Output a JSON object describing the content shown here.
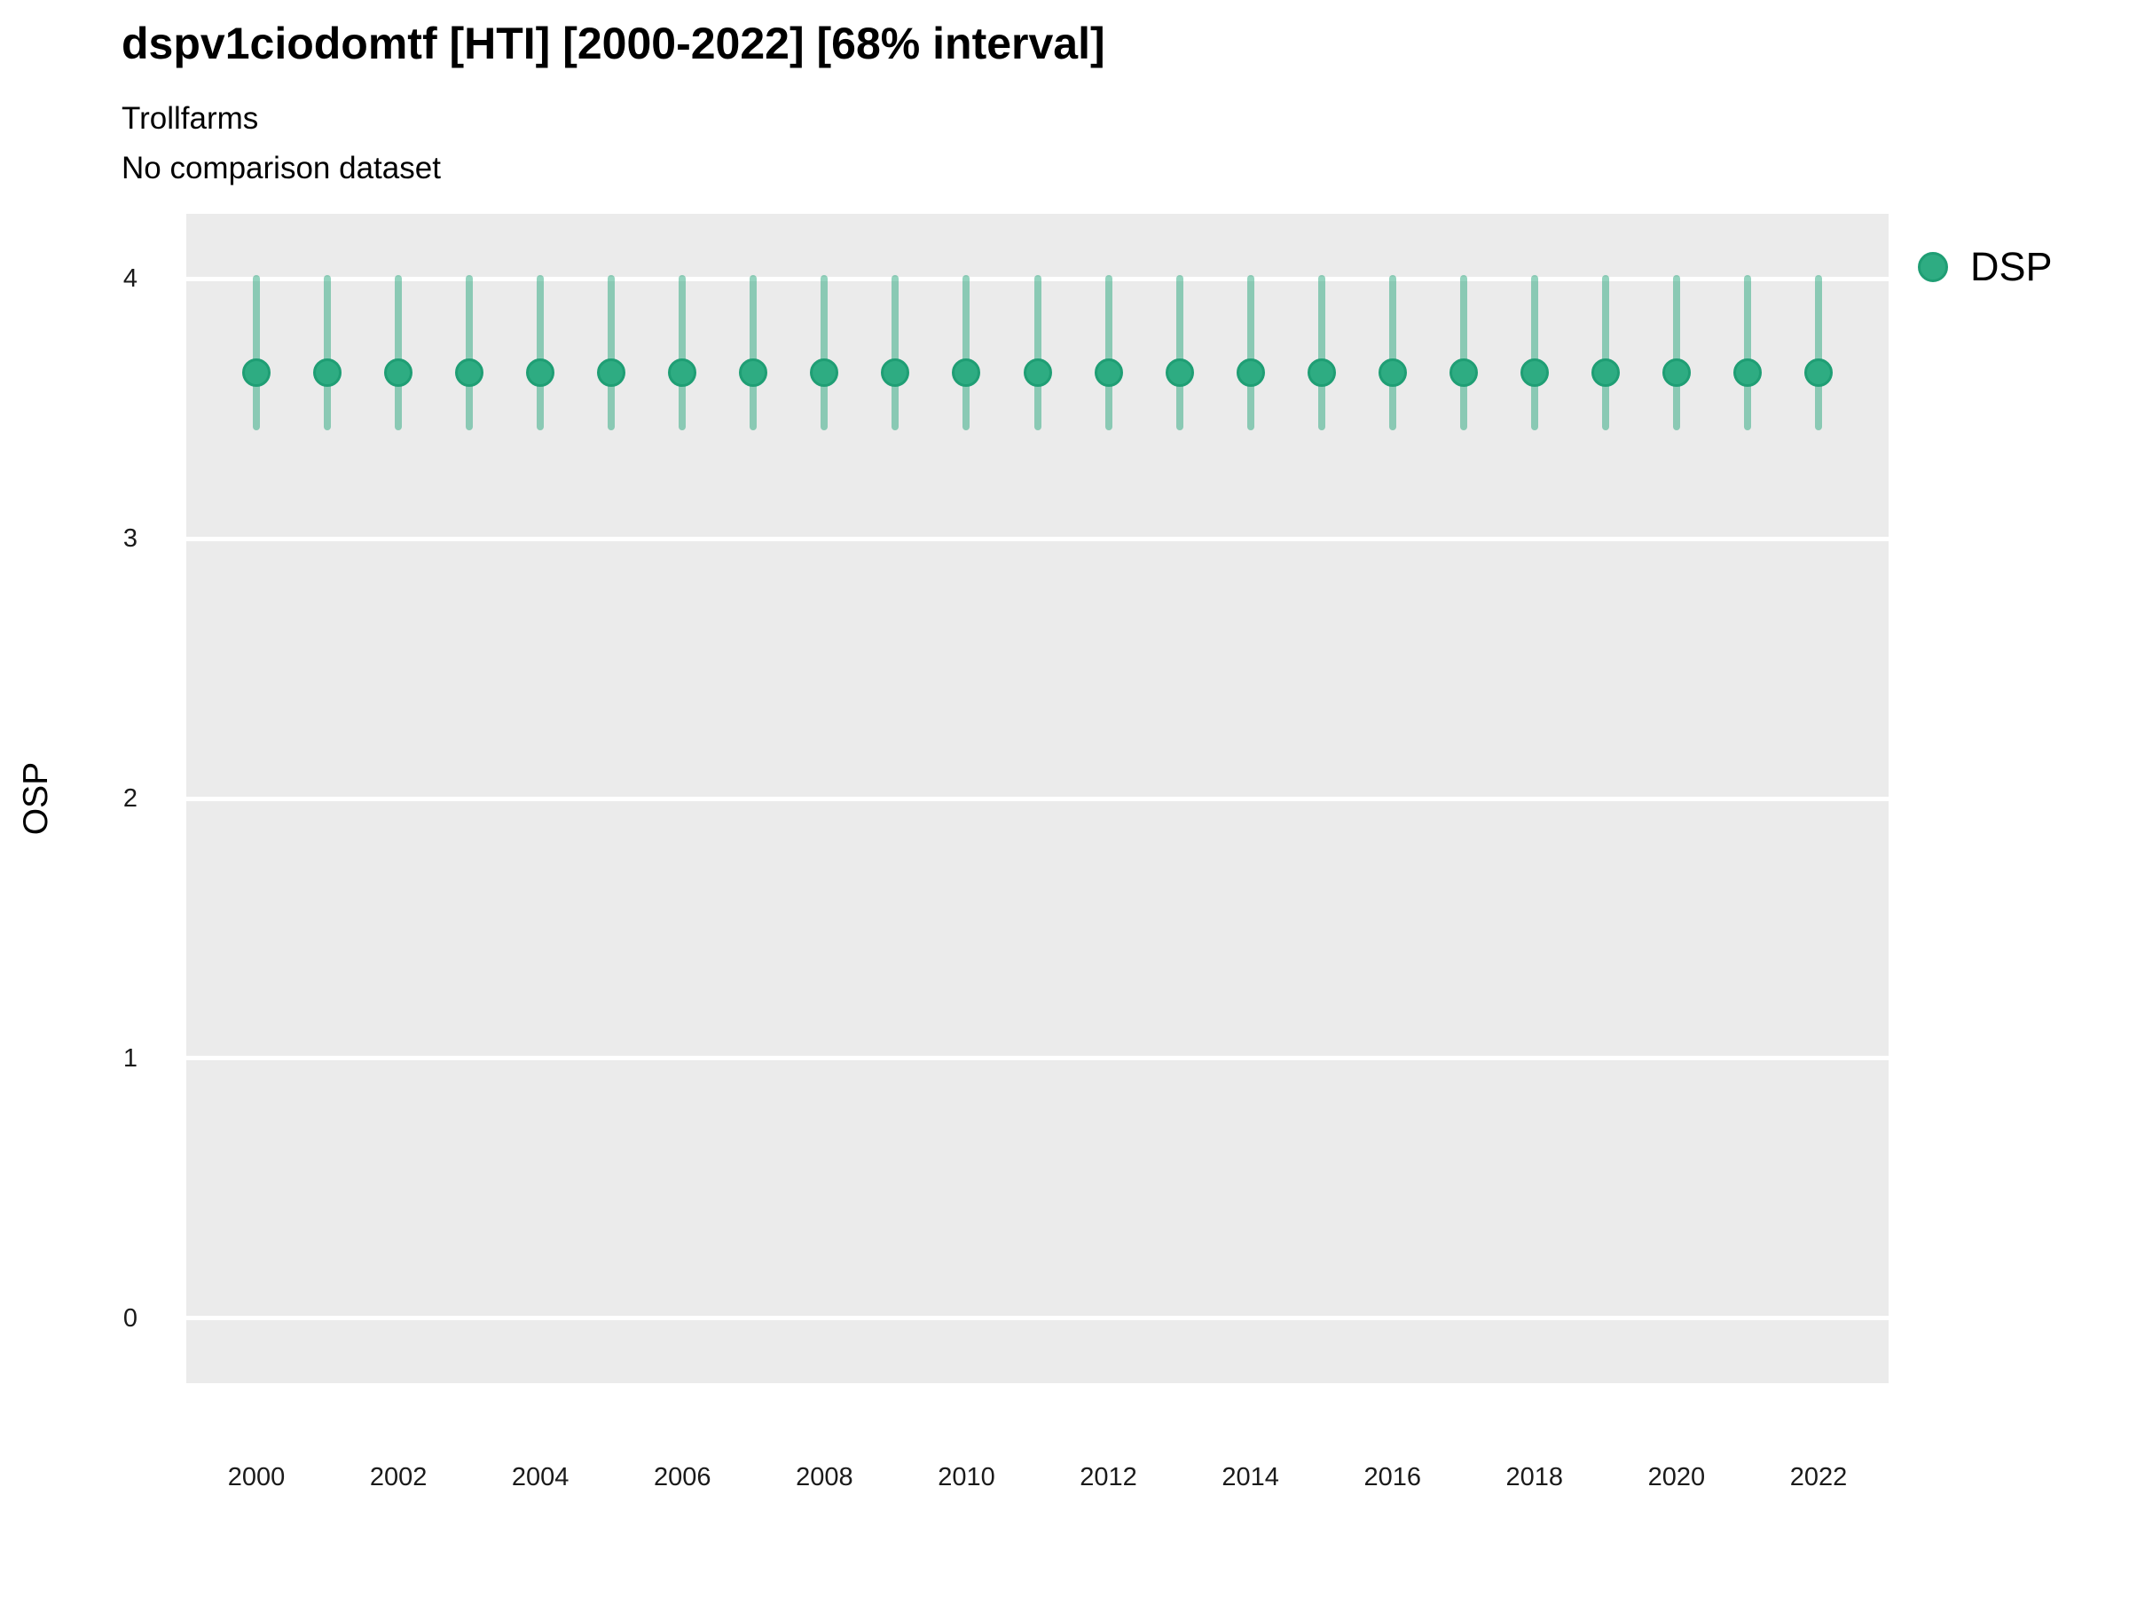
{
  "chart_data": {
    "type": "scatter",
    "title": "dspv1ciodomtf [HTI] [2000-2022] [68% interval]",
    "subtitle": "Trollfarms",
    "note": "No comparison dataset",
    "interval_label": "68% interval",
    "xlabel": "",
    "ylabel": "OSP",
    "ylim": [
      -0.25,
      4.25
    ],
    "yticks": [
      0,
      1,
      2,
      3,
      4
    ],
    "categories": [
      2000,
      2001,
      2002,
      2003,
      2004,
      2005,
      2006,
      2007,
      2008,
      2009,
      2010,
      2011,
      2012,
      2013,
      2014,
      2015,
      2016,
      2017,
      2018,
      2019,
      2020,
      2021,
      2022
    ],
    "xtick_labels": [
      2000,
      2002,
      2004,
      2006,
      2008,
      2010,
      2012,
      2014,
      2016,
      2018,
      2020,
      2022
    ],
    "series": [
      {
        "name": "DSP",
        "mean": [
          3.64,
          3.64,
          3.64,
          3.64,
          3.64,
          3.64,
          3.64,
          3.64,
          3.64,
          3.64,
          3.64,
          3.64,
          3.64,
          3.64,
          3.64,
          3.64,
          3.64,
          3.64,
          3.64,
          3.64,
          3.64,
          3.64,
          3.64
        ],
        "lower": [
          3.43,
          3.43,
          3.43,
          3.43,
          3.43,
          3.43,
          3.43,
          3.43,
          3.43,
          3.43,
          3.43,
          3.43,
          3.43,
          3.43,
          3.43,
          3.43,
          3.43,
          3.43,
          3.43,
          3.43,
          3.43,
          3.43,
          3.43
        ],
        "upper": [
          4.0,
          4.0,
          4.0,
          4.0,
          4.0,
          4.0,
          4.0,
          4.0,
          4.0,
          4.0,
          4.0,
          4.0,
          4.0,
          4.0,
          4.0,
          4.0,
          4.0,
          4.0,
          4.0,
          4.0,
          4.0,
          4.0,
          4.0
        ]
      }
    ],
    "grid": "horizontal-major-only",
    "legend_position": "right",
    "colors": {
      "point_fill": "#2eac82",
      "point_stroke": "#1f9e74",
      "error_bar": "rgba(42,168,126,0.5)",
      "panel_bg": "#ebebeb",
      "gridline": "#ffffff",
      "text": "#000000"
    }
  }
}
